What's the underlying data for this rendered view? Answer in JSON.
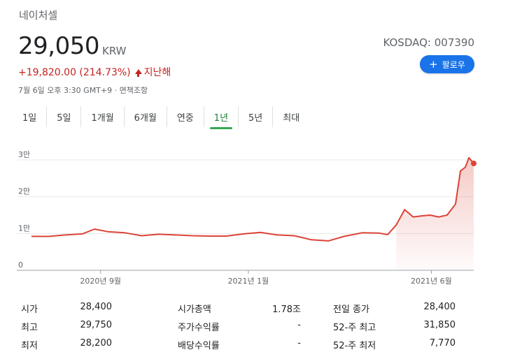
{
  "header": {
    "company": "네이처셀",
    "price": "29,050",
    "currency": "KRW",
    "change": "+19,820.00 (214.73%)",
    "change_label": "지난해",
    "timestamp": "7월 6일 오후 3:30 GMT+9 · 면책조항",
    "exchange": "KOSDAQ: 007390",
    "follow_label": "팔로우",
    "accent_color": "#1a73e8",
    "change_color": "#c5221f"
  },
  "tabs": [
    {
      "label": "1일",
      "active": false
    },
    {
      "label": "5일",
      "active": false
    },
    {
      "label": "1개월",
      "active": false
    },
    {
      "label": "6개월",
      "active": false
    },
    {
      "label": "연중",
      "active": false
    },
    {
      "label": "1년",
      "active": true
    },
    {
      "label": "5년",
      "active": false
    },
    {
      "label": "최대",
      "active": false
    }
  ],
  "chart_data": {
    "type": "area",
    "line_color": "#db4437",
    "grid": true,
    "ylim": [
      0,
      30000
    ],
    "y_ticks": [
      {
        "value": 0,
        "label": "0"
      },
      {
        "value": 10000,
        "label": "1만"
      },
      {
        "value": 20000,
        "label": "2만"
      },
      {
        "value": 30000,
        "label": "3만"
      }
    ],
    "x_ticks": [
      {
        "date": "2020-09-01",
        "label": "2020년 9월"
      },
      {
        "date": "2021-01-01",
        "label": "2021년 1월"
      },
      {
        "date": "2021-06-01",
        "label": "2021년 6월"
      }
    ],
    "x": [
      "2020-07-06",
      "2020-07-20",
      "2020-08-03",
      "2020-08-17",
      "2020-08-27",
      "2020-09-07",
      "2020-09-21",
      "2020-10-05",
      "2020-10-19",
      "2020-11-02",
      "2020-11-16",
      "2020-11-30",
      "2020-12-14",
      "2020-12-28",
      "2021-01-11",
      "2021-01-25",
      "2021-02-08",
      "2021-02-22",
      "2021-03-08",
      "2021-03-22",
      "2021-04-05",
      "2021-04-19",
      "2021-04-26",
      "2021-05-03",
      "2021-05-10",
      "2021-05-17",
      "2021-05-24",
      "2021-05-31",
      "2021-06-07",
      "2021-06-14",
      "2021-06-21",
      "2021-06-25",
      "2021-06-29",
      "2021-07-02",
      "2021-07-06"
    ],
    "values": [
      9230,
      9200,
      9600,
      9900,
      11200,
      10500,
      10200,
      9400,
      9800,
      9600,
      9400,
      9300,
      9300,
      9900,
      10300,
      9600,
      9400,
      8300,
      8000,
      9300,
      10200,
      10100,
      9700,
      12300,
      16500,
      14500,
      14800,
      15000,
      14500,
      15000,
      18000,
      27000,
      28000,
      30600,
      29050
    ]
  },
  "stats": [
    {
      "label": "시가",
      "value": "28,400"
    },
    {
      "label": "최고",
      "value": "29,750"
    },
    {
      "label": "최저",
      "value": "28,200"
    },
    {
      "label": "시가총액",
      "value": "1.78조"
    },
    {
      "label": "주가수익률",
      "value": "-"
    },
    {
      "label": "배당수익률",
      "value": "-"
    },
    {
      "label": "전일 종가",
      "value": "28,400"
    },
    {
      "label": "52-주 최고",
      "value": "31,850"
    },
    {
      "label": "52-주 최저",
      "value": "7,770"
    }
  ]
}
